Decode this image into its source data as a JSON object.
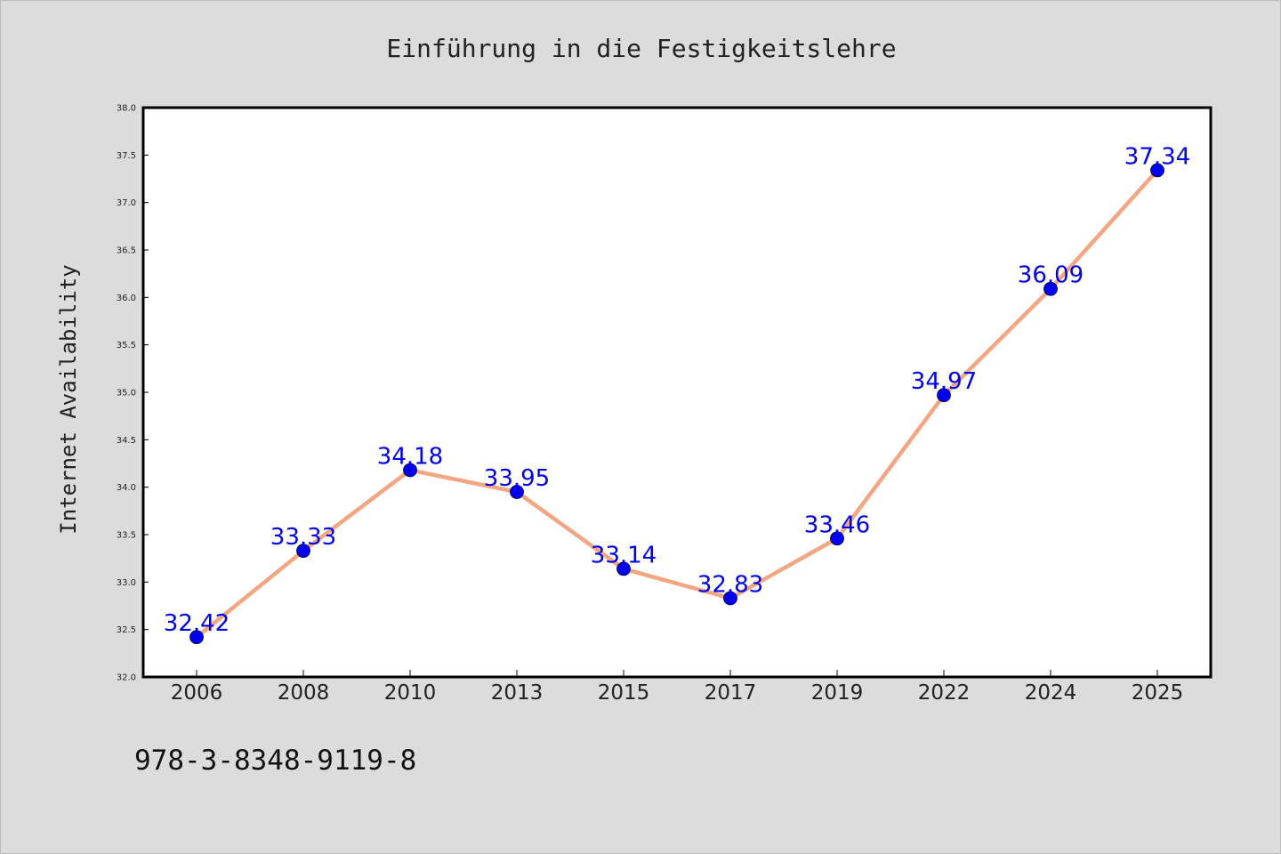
{
  "chart_data": {
    "type": "line",
    "title": "Einführung in die Festigkeitslehre",
    "ylabel": "Internet Availability",
    "xlabel": "",
    "categories": [
      "2006",
      "2008",
      "2010",
      "2013",
      "2015",
      "2017",
      "2019",
      "2022",
      "2024",
      "2025"
    ],
    "series": [
      {
        "values": [
          32.42,
          33.33,
          34.18,
          33.95,
          33.14,
          32.83,
          33.46,
          34.97,
          36.09,
          37.34
        ],
        "labels": [
          "32.42",
          "33.33",
          "34.18",
          "33.95",
          "33.14",
          "32.83",
          "33.46",
          "34.97",
          "36.09",
          "37.34"
        ],
        "line_color": "#f4a582",
        "marker_color": "#0000ee"
      }
    ],
    "ylim": [
      32.0,
      38.0
    ],
    "yticks": [
      "32.0",
      "32.5",
      "33.0",
      "33.5",
      "34.0",
      "34.5",
      "35.0",
      "35.5",
      "36.0",
      "36.5",
      "37.0",
      "37.5",
      "38.0"
    ],
    "grid": false,
    "legend": "none"
  },
  "footer": {
    "isbn": "978-3-8348-9119-8"
  }
}
